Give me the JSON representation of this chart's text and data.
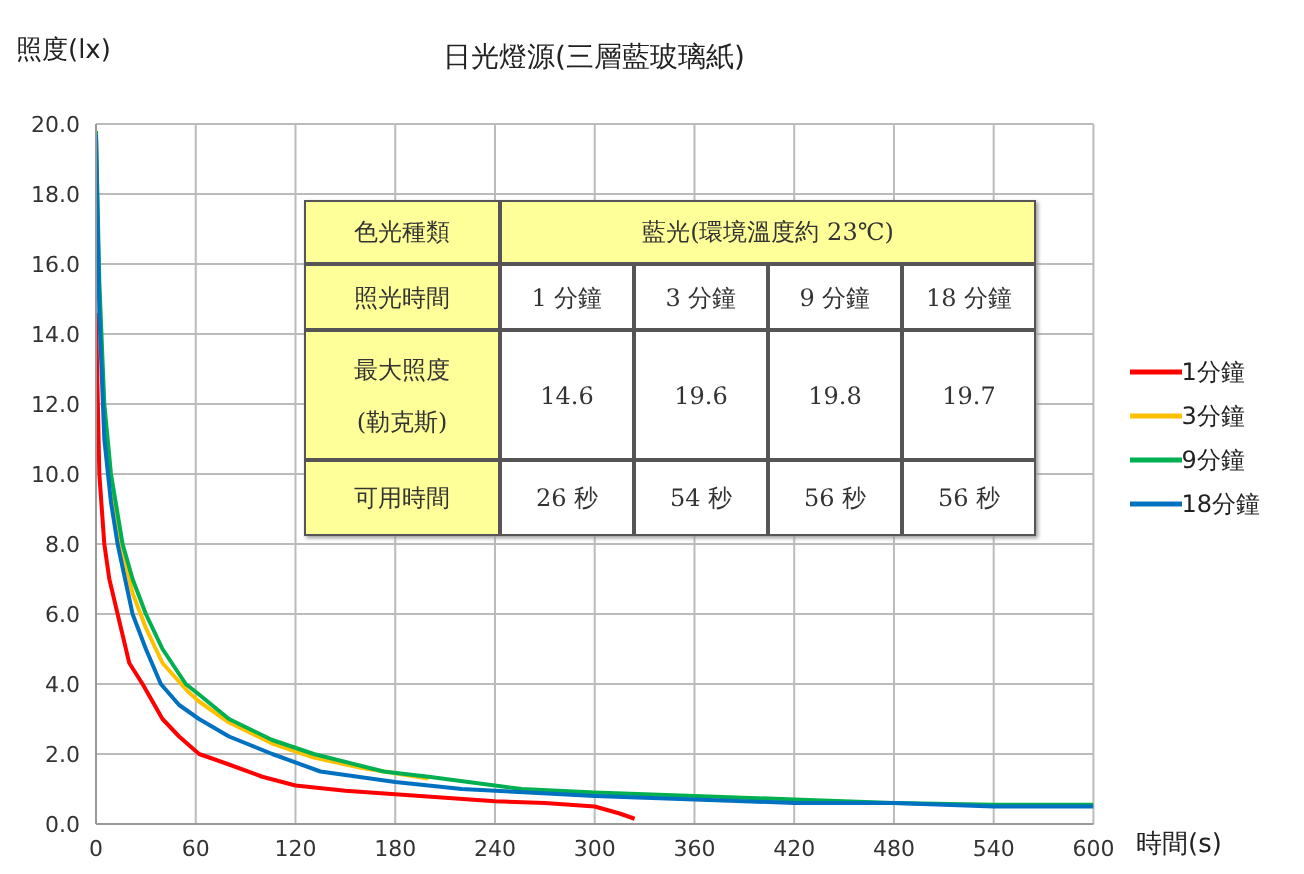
{
  "chart_data": {
    "type": "line",
    "title": "日光燈源(三層藍玻璃紙)",
    "ylabel": "照度(lx)",
    "xlabel": "時間(s)",
    "xlim": [
      0,
      600
    ],
    "xticks": [
      0,
      60,
      120,
      180,
      240,
      300,
      360,
      420,
      480,
      540,
      600
    ],
    "ylim": [
      0,
      20
    ],
    "yticks": [
      {
        "value": 0,
        "label": "0.0"
      },
      {
        "value": 2,
        "label": "2.0"
      },
      {
        "value": 4,
        "label": "4.0"
      },
      {
        "value": 6,
        "label": "6.0"
      },
      {
        "value": 8,
        "label": "8.0"
      },
      {
        "value": 10,
        "label": "10.0"
      },
      {
        "value": 12,
        "label": "12.0"
      },
      {
        "value": 14,
        "label": "14.0"
      },
      {
        "value": 16,
        "label": "16.0"
      },
      {
        "value": 18,
        "label": "18.0"
      },
      {
        "value": 20,
        "label": "20.0"
      }
    ],
    "grid": true,
    "legend": "right",
    "marker": "none",
    "line_style": "solid",
    "annotations": [
      "色光種類",
      "藍光(環境溫度約 23℃)",
      "照光時間",
      "1 分鐘",
      "3 分鐘",
      "9 分鐘",
      "18 分鐘",
      "最大照度 (勒克斯)",
      "14.6",
      "19.6",
      "19.8",
      "19.7",
      "可用時間",
      "26 秒",
      "54 秒",
      "56 秒",
      "56 秒"
    ],
    "series": [
      {
        "name": "1分鐘",
        "color": "#ff0000",
        "x": [
          0,
          2,
          5,
          8,
          13,
          20,
          28,
          40,
          50,
          62,
          80,
          100,
          120,
          150,
          180,
          210,
          240,
          270,
          300,
          315,
          324
        ],
        "values": [
          14.6,
          10,
          8,
          7,
          6,
          4.6,
          4,
          3,
          2.5,
          2,
          1.7,
          1.35,
          1.1,
          0.95,
          0.85,
          0.75,
          0.65,
          0.6,
          0.5,
          0.3,
          0.15
        ]
      },
      {
        "name": "3分鐘",
        "color": "#ffc000",
        "x": [
          9,
          16,
          22,
          30,
          40,
          55,
          62,
          80,
          106,
          131,
          160,
          200
        ],
        "values": [
          9.5,
          7.8,
          6.6,
          5.6,
          4.6,
          3.8,
          3.5,
          2.9,
          2.3,
          1.9,
          1.6,
          1.3
        ]
      },
      {
        "name": "9分鐘",
        "color": "#00b050",
        "x": [
          0,
          2,
          5,
          9,
          16,
          22,
          30,
          40,
          54,
          62,
          80,
          106,
          131,
          173,
          200,
          256,
          300,
          360,
          420,
          480,
          540,
          600
        ],
        "values": [
          19.8,
          15.5,
          12,
          10,
          8,
          7,
          6,
          5,
          4,
          3.7,
          3,
          2.4,
          2,
          1.5,
          1.35,
          1,
          0.9,
          0.8,
          0.7,
          0.6,
          0.55,
          0.55
        ]
      },
      {
        "name": "18分鐘",
        "color": "#0070c0",
        "x": [
          0,
          2,
          5,
          9,
          13,
          22,
          30,
          39,
          50,
          62,
          80,
          106,
          135,
          180,
          220,
          260,
          300,
          360,
          420,
          480,
          540,
          600
        ],
        "values": [
          19.7,
          14.6,
          11,
          9.2,
          8,
          6,
          5,
          4,
          3.4,
          3,
          2.5,
          2,
          1.5,
          1.2,
          1,
          0.9,
          0.8,
          0.7,
          0.6,
          0.6,
          0.5,
          0.5
        ]
      }
    ]
  }
}
